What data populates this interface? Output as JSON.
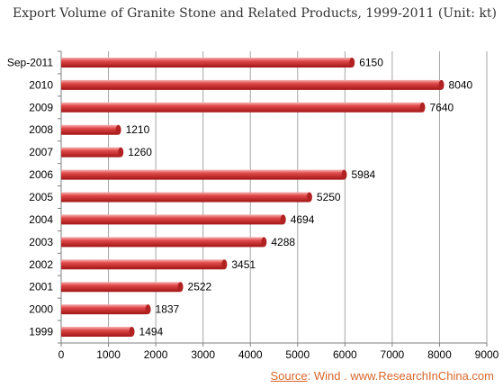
{
  "chart_data": {
    "type": "bar",
    "orientation": "horizontal",
    "title": "Export Volume of Granite Stone and Related Products, 1999-2011 (Unit: kt)",
    "categories": [
      "Sep-2011",
      "2010",
      "2009",
      "2008",
      "2007",
      "2006",
      "2005",
      "2004",
      "2003",
      "2002",
      "2001",
      "2000",
      "1999"
    ],
    "values": [
      6150,
      8040,
      7640,
      1210,
      1260,
      5984,
      5250,
      4694,
      4288,
      3451,
      2522,
      1837,
      1494
    ],
    "xlim": [
      0,
      9000
    ],
    "xticks": [
      0,
      1000,
      2000,
      3000,
      4000,
      5000,
      6000,
      7000,
      8000,
      9000
    ],
    "xlabel": "",
    "ylabel": "",
    "grid": "vertical",
    "legend": "none",
    "bar_color": "#d93a3a"
  },
  "source": {
    "label": "Source",
    "text": ":   Wind . www.ResearchInChina.com"
  }
}
